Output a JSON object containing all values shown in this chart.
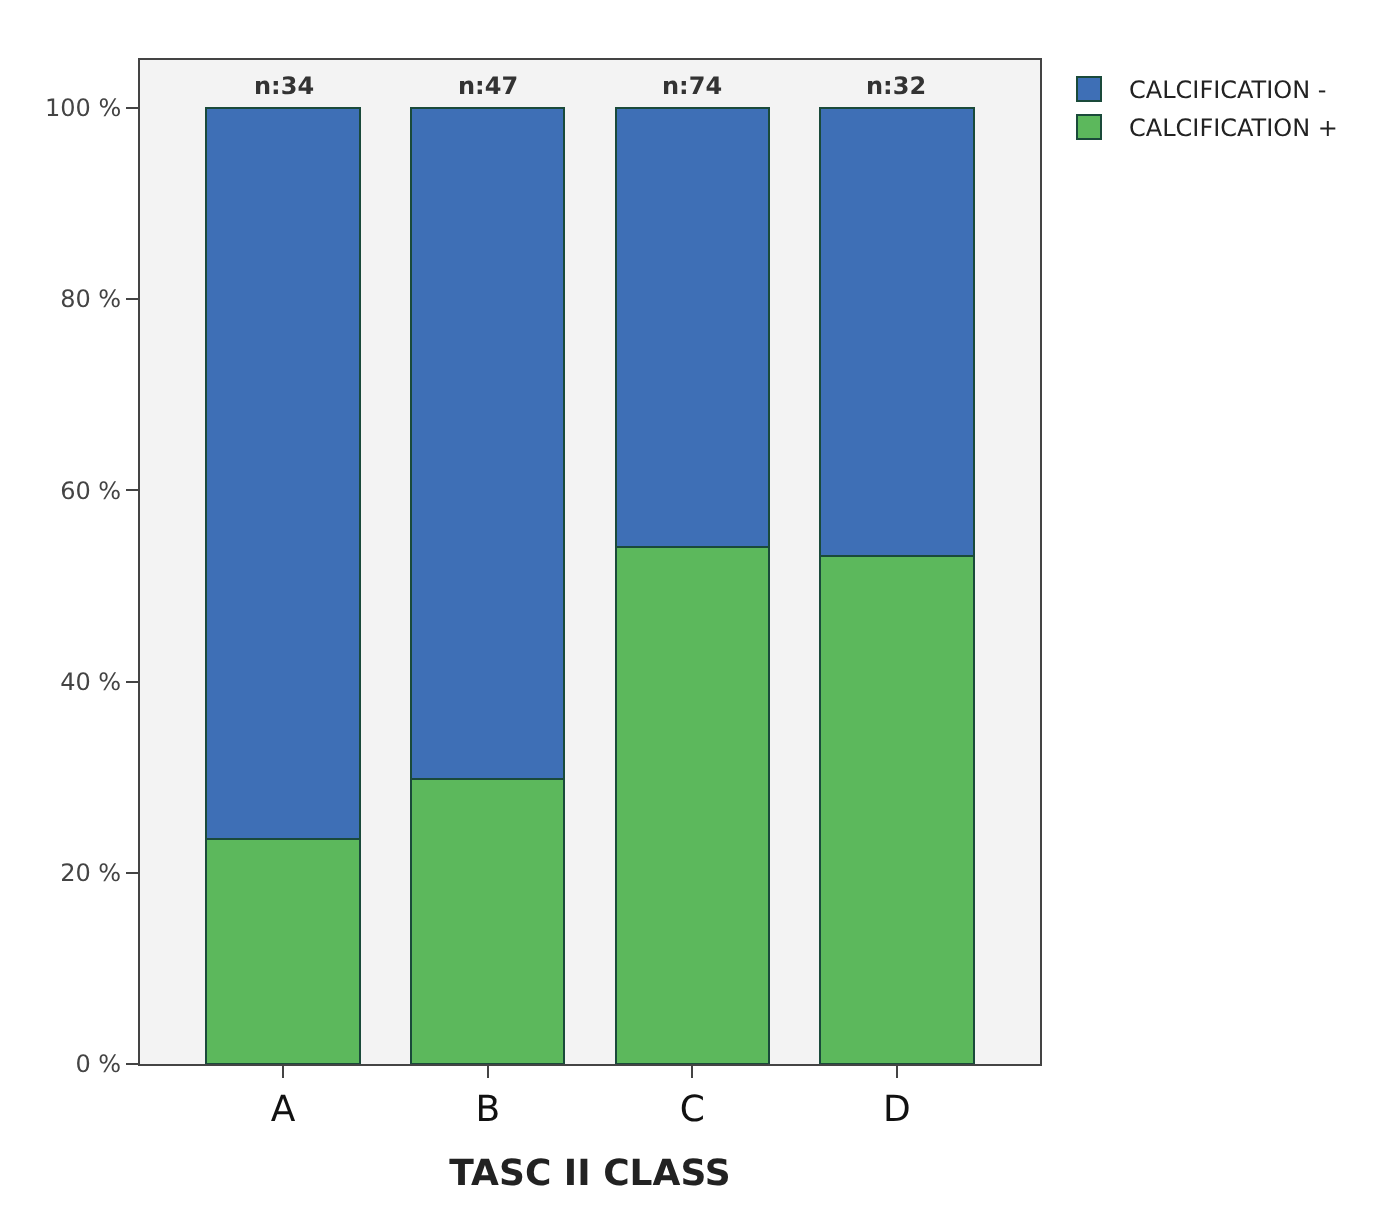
{
  "chart_data": {
    "type": "bar",
    "stacked": true,
    "xlabel": "TASC II CLASS",
    "categories": [
      "A",
      "B",
      "C",
      "D"
    ],
    "series": [
      {
        "name": "CALCIFICATION +",
        "color": "#5cb85c",
        "values": [
          23.5,
          29.8,
          54.1,
          53.1
        ]
      },
      {
        "name": "CALCIFICATION -",
        "color": "#3e6fb6",
        "values": [
          76.5,
          70.2,
          45.9,
          46.9
        ]
      }
    ],
    "annotations": [
      {
        "text": "n:34",
        "x": "A",
        "y": 100
      },
      {
        "text": "n:47",
        "x": "B",
        "y": 100
      },
      {
        "text": "n:74",
        "x": "C",
        "y": 100
      },
      {
        "text": "n:32",
        "x": "D",
        "y": 100
      }
    ],
    "ylim": [
      0,
      105
    ],
    "yticks": [
      {
        "value": 0,
        "label": "0 %"
      },
      {
        "value": 20,
        "label": "20 %"
      },
      {
        "value": 40,
        "label": "40 %"
      },
      {
        "value": 60,
        "label": "60 %"
      },
      {
        "value": 80,
        "label": "80 %"
      },
      {
        "value": 100,
        "label": "100 %"
      }
    ],
    "grid": false,
    "legend": "top right"
  }
}
